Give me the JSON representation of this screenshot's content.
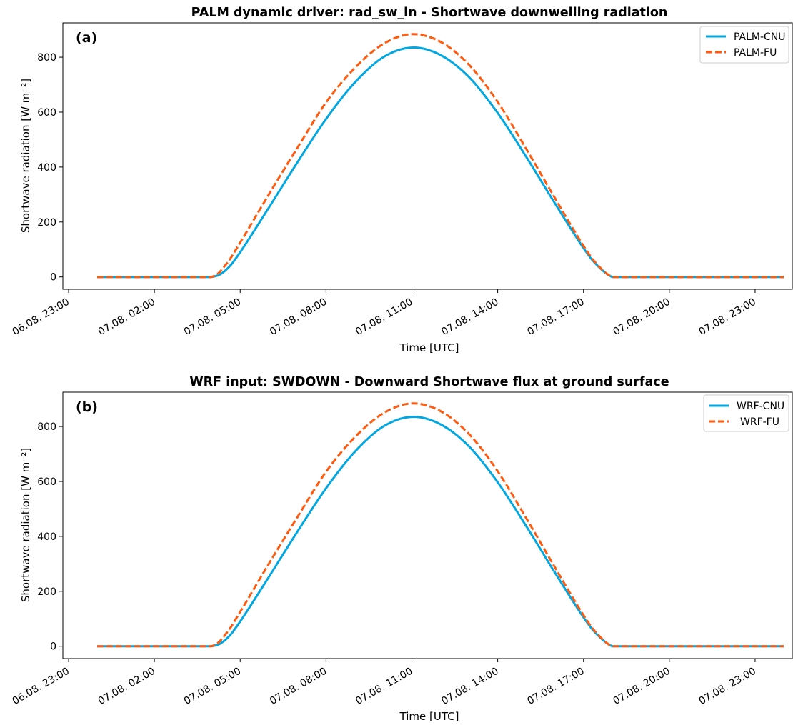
{
  "chart_data": [
    {
      "type": "line",
      "panel_label": "(a)",
      "title": "PALM dynamic driver: rad_sw_in - Shortwave downwelling radiation",
      "xlabel": "Time [UTC]",
      "ylabel": "Shortwave radiation [W m⁻²]",
      "x_ticks": [
        "06.08. 23:00",
        "07.08. 02:00",
        "07.08. 05:00",
        "07.08. 08:00",
        "07.08. 11:00",
        "07.08. 14:00",
        "07.08. 17:00",
        "07.08. 20:00",
        "07.08. 23:00"
      ],
      "x_tick_hours": [
        -1,
        2,
        5,
        8,
        11,
        14,
        17,
        20,
        23
      ],
      "xlim_hours": [
        -1.2,
        24.3
      ],
      "y_ticks": [
        0,
        200,
        400,
        600,
        800
      ],
      "ylim": [
        -45,
        925
      ],
      "grid": false,
      "legend_position": "top-right",
      "x_hours": [
        0,
        1,
        2,
        3,
        4,
        4.5,
        5,
        6,
        7,
        8,
        9,
        10,
        11,
        12,
        13,
        14,
        15,
        16,
        17,
        17.5,
        18,
        18.5,
        19,
        20,
        21,
        22,
        23,
        24
      ],
      "series": [
        {
          "name": "PALM-CNU",
          "color": "#00a7e1",
          "dash": "solid",
          "values": [
            0,
            0,
            0,
            0,
            0,
            25,
            90,
            252,
            417,
            575,
            707,
            800,
            835,
            808,
            727,
            597,
            437,
            268,
            105,
            40,
            0,
            0,
            0,
            0,
            0,
            0,
            0,
            0
          ]
        },
        {
          "name": "PALM-FU",
          "color": "#ff5a0e",
          "dash": "dashed",
          "values": [
            0,
            0,
            0,
            0,
            0,
            45,
            125,
            300,
            470,
            635,
            760,
            848,
            884,
            856,
            772,
            637,
            466,
            287,
            113,
            43,
            0,
            0,
            0,
            0,
            0,
            0,
            0,
            0
          ]
        }
      ]
    },
    {
      "type": "line",
      "panel_label": "(b)",
      "title": "WRF input: SWDOWN - Downward Shortwave flux at ground surface",
      "xlabel": "Time [UTC]",
      "ylabel": "Shortwave radiation [W m⁻²]",
      "x_ticks": [
        "06.08. 23:00",
        "07.08. 02:00",
        "07.08. 05:00",
        "07.08. 08:00",
        "07.08. 11:00",
        "07.08. 14:00",
        "07.08. 17:00",
        "07.08. 20:00",
        "07.08. 23:00"
      ],
      "x_tick_hours": [
        -1,
        2,
        5,
        8,
        11,
        14,
        17,
        20,
        23
      ],
      "xlim_hours": [
        -1.2,
        24.3
      ],
      "y_ticks": [
        0,
        200,
        400,
        600,
        800
      ],
      "ylim": [
        -45,
        925
      ],
      "grid": false,
      "legend_position": "top-right",
      "x_hours": [
        0,
        1,
        2,
        3,
        4,
        4.5,
        5,
        6,
        7,
        8,
        9,
        10,
        11,
        12,
        13,
        14,
        15,
        16,
        17,
        17.5,
        18,
        18.5,
        19,
        20,
        21,
        22,
        23,
        24
      ],
      "series": [
        {
          "name": "WRF-CNU",
          "color": "#00a7e1",
          "dash": "solid",
          "values": [
            0,
            0,
            0,
            0,
            0,
            25,
            90,
            252,
            417,
            575,
            707,
            800,
            835,
            808,
            727,
            597,
            437,
            268,
            105,
            40,
            0,
            0,
            0,
            0,
            0,
            0,
            0,
            0
          ]
        },
        {
          "name": "WRF-FU",
          "color": "#ff5a0e",
          "dash": "dashed",
          "values": [
            0,
            0,
            0,
            0,
            0,
            45,
            125,
            300,
            470,
            635,
            760,
            848,
            884,
            856,
            772,
            637,
            466,
            287,
            113,
            43,
            0,
            0,
            0,
            0,
            0,
            0,
            0,
            0
          ]
        }
      ]
    }
  ]
}
